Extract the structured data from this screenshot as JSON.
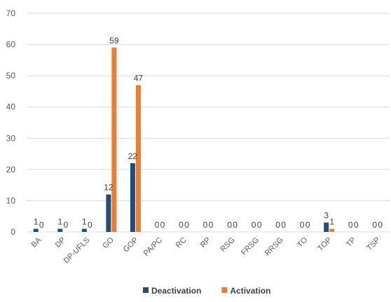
{
  "chart_data": {
    "type": "bar",
    "categories": [
      "BA",
      "DP",
      "DP-UFLS",
      "GO",
      "GOP",
      "PA/PC",
      "RC",
      "RP",
      "RSG",
      "FRSG",
      "RRSG",
      "TO",
      "TOP",
      "TP",
      "TSP"
    ],
    "series": [
      {
        "name": "Deactivation",
        "values": [
          1,
          1,
          1,
          12,
          22,
          0,
          0,
          0,
          0,
          0,
          0,
          0,
          3,
          0,
          0
        ],
        "color": "#1f4e79"
      },
      {
        "name": "Activation",
        "values": [
          0,
          0,
          0,
          59,
          47,
          0,
          0,
          0,
          0,
          0,
          0,
          0,
          1,
          0,
          0
        ],
        "color": "#ed7d31"
      }
    ],
    "ylim": [
      0,
      70
    ],
    "yticks": [
      0,
      10,
      20,
      30,
      40,
      50,
      60,
      70
    ],
    "grid": true,
    "legend": "bottom"
  }
}
